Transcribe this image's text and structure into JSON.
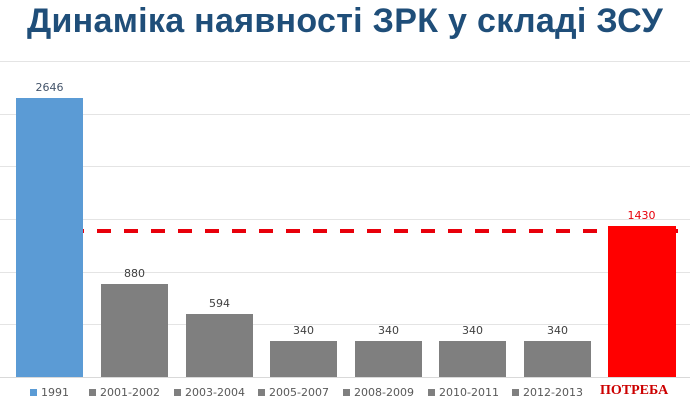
{
  "title": "Динаміка наявності ЗРК у складі ЗСУ",
  "chart_data": {
    "type": "bar",
    "title": "Динаміка наявності ЗРК у складі ЗСУ",
    "xlabel": "",
    "ylabel": "",
    "ylim": [
      0,
      3000
    ],
    "grid": true,
    "gridlines": [
      500,
      1000,
      1500,
      2000,
      2500,
      3000
    ],
    "legend_position": "bottom",
    "categories": [
      "1991",
      "2001-2002",
      "2003-2004",
      "2005-2007",
      "2008-2009",
      "2010-2011",
      "2012-2013",
      "ПОТРЕБА"
    ],
    "values": [
      2646,
      880,
      594,
      340,
      340,
      340,
      340,
      1430
    ],
    "labels": [
      "2646",
      "880",
      "594",
      "340",
      "340",
      "340",
      "340",
      "1430"
    ],
    "colors": [
      "#5b9bd5",
      "#7f7f7f",
      "#7f7f7f",
      "#7f7f7f",
      "#7f7f7f",
      "#7f7f7f",
      "#7f7f7f",
      "#ff0000"
    ],
    "reference_line": {
      "value": 1430,
      "style": "dashed",
      "color": "#e8000b"
    }
  },
  "legend": [
    {
      "label": "1991",
      "color": "#5b9bd5"
    },
    {
      "label": "2001-2002",
      "color": "#7f7f7f"
    },
    {
      "label": "2003-2004",
      "color": "#7f7f7f"
    },
    {
      "label": "2005-2007",
      "color": "#7f7f7f"
    },
    {
      "label": "2008-2009",
      "color": "#7f7f7f"
    },
    {
      "label": "2010-2011",
      "color": "#7f7f7f"
    },
    {
      "label": "2012-2013",
      "color": "#7f7f7f"
    },
    {
      "label": "ПОТРЕБА",
      "color": "#cc0000"
    }
  ]
}
